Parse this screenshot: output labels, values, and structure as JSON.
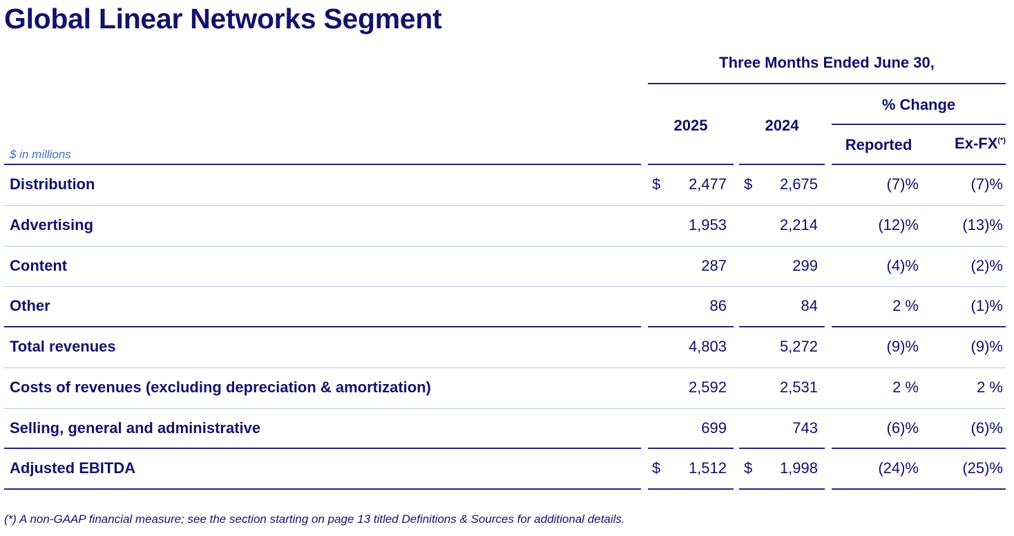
{
  "title": "Global Linear Networks Segment",
  "header": {
    "period": "Three Months Ended June 30,",
    "col_2025": "2025",
    "col_2024": "2024",
    "pct_change": "% Change",
    "reported": "Reported",
    "exfx": "Ex-FX",
    "exfx_note": "(*)"
  },
  "units": "$ in millions",
  "rows": [
    {
      "label": "Distribution",
      "cur": "$",
      "v2025": "2,477",
      "v2024": "2,675",
      "reported": "(7)%",
      "exfx": "(7)%"
    },
    {
      "label": "Advertising",
      "cur": "",
      "v2025": "1,953",
      "v2024": "2,214",
      "reported": "(12)%",
      "exfx": "(13)%"
    },
    {
      "label": "Content",
      "cur": "",
      "v2025": "287",
      "v2024": "299",
      "reported": "(4)%",
      "exfx": "(2)%"
    },
    {
      "label": "Other",
      "cur": "",
      "v2025": "86",
      "v2024": "84",
      "reported": "2 %",
      "exfx": "(1)%"
    },
    {
      "label": "Total revenues",
      "cur": "",
      "v2025": "4,803",
      "v2024": "5,272",
      "reported": "(9)%",
      "exfx": "(9)%"
    },
    {
      "label": "Costs of revenues (excluding depreciation & amortization)",
      "cur": "",
      "v2025": "2,592",
      "v2024": "2,531",
      "reported": "2 %",
      "exfx": "2 %"
    },
    {
      "label": "Selling, general and administrative",
      "cur": "",
      "v2025": "699",
      "v2024": "743",
      "reported": "(6)%",
      "exfx": "(6)%"
    },
    {
      "label": "Adjusted EBITDA",
      "cur": "$",
      "v2025": "1,512",
      "v2024": "1,998",
      "reported": "(24)%",
      "exfx": "(25)%"
    }
  ],
  "footnote": "(*) A non-GAAP financial measure; see the section starting on page 13 titled Definitions & Sources for additional details."
}
